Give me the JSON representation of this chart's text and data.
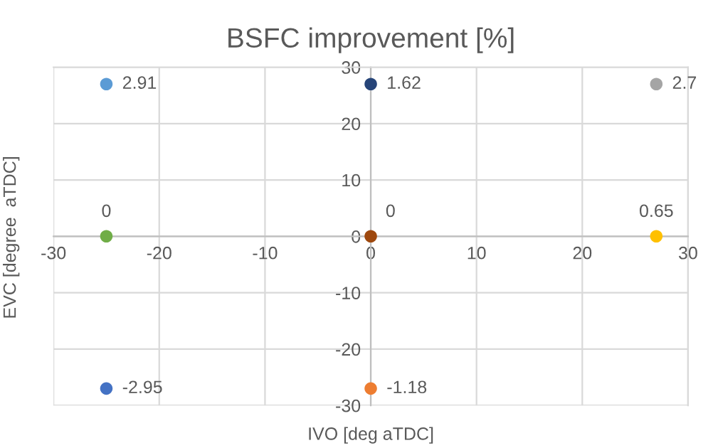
{
  "chart_data": {
    "type": "scatter",
    "title": "BSFC improvement [%]",
    "xlabel": "IVO [deg aTDC]",
    "ylabel": "EVC [degree  aTDC]",
    "x": [
      -25,
      0,
      27,
      -25,
      0,
      27,
      -25,
      0
    ],
    "values": [
      27,
      27,
      27,
      0,
      0,
      0,
      -27,
      -27
    ],
    "colors": [
      "#5b9bd5",
      "#264478",
      "#a5a5a5",
      "#70ad47",
      "#9e480e",
      "#ffc000",
      "#4472c4",
      "#ed7d31"
    ],
    "annotations": [
      {
        "text": "2.91",
        "x": -25,
        "y": 27
      },
      {
        "text": "1.62",
        "x": 0,
        "y": 27
      },
      {
        "text": "2.7",
        "x": 27,
        "y": 27
      },
      {
        "text": "0",
        "x": -25,
        "y": 0
      },
      {
        "text": "0",
        "x": 0,
        "y": 0
      },
      {
        "text": "0.65",
        "x": 27,
        "y": 0
      },
      {
        "text": "-2.95",
        "x": -25,
        "y": -27
      },
      {
        "text": "-1.18",
        "x": 0,
        "y": -27
      }
    ],
    "xlim": [
      -30,
      30
    ],
    "ylim": [
      -30,
      30
    ],
    "xticks": [
      -30,
      -20,
      -10,
      0,
      10,
      20,
      30
    ],
    "yticks": [
      -30,
      -20,
      -10,
      0,
      10,
      20,
      30
    ],
    "grid": true,
    "marker": "circle",
    "legend": false
  }
}
